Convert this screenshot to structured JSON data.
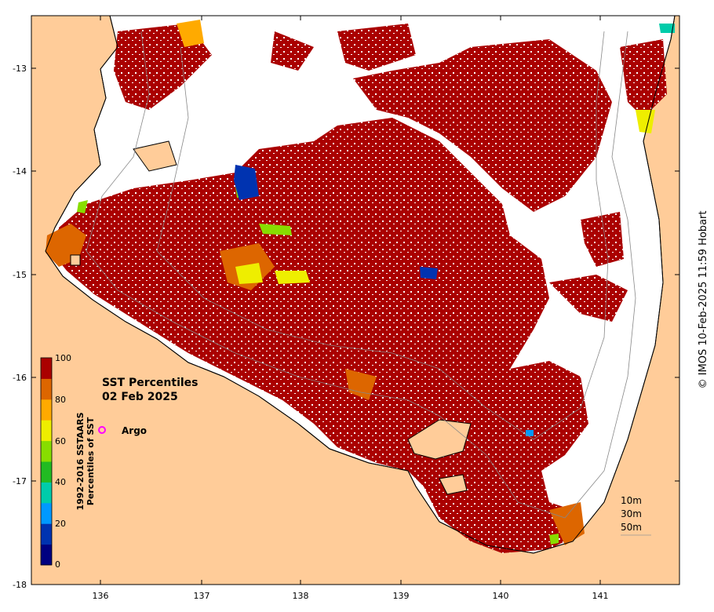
{
  "map": {
    "title_line1": "SST Percentiles",
    "title_line2": "02 Feb 2025",
    "x_ticks": [
      "136",
      "137",
      "138",
      "139",
      "140",
      "141"
    ],
    "y_ticks": [
      "-13",
      "-14",
      "-15",
      "-16",
      "-17",
      "-18"
    ],
    "legend": {
      "label_line1": "1992-2016 SSTAARS",
      "label_line2": "Percentiles of SST",
      "ticks": [
        "100",
        "80",
        "60",
        "40",
        "20",
        "0"
      ],
      "colors": [
        "#000080",
        "#0033b0",
        "#0099ff",
        "#00ccaa",
        "#22bb22",
        "#88dd00",
        "#eeee00",
        "#ffaa00",
        "#dd6600",
        "#aa0000"
      ]
    },
    "argo_label": "Argo",
    "depth_labels": [
      "10m",
      "30m",
      "50m"
    ],
    "credit": "© IMOS 10-Feb-2025 11:59 Hobart",
    "colors": {
      "land": "#ffcc99",
      "warm": "#aa0000",
      "orange": "#dd6600",
      "argo": "#ff00ff"
    }
  }
}
